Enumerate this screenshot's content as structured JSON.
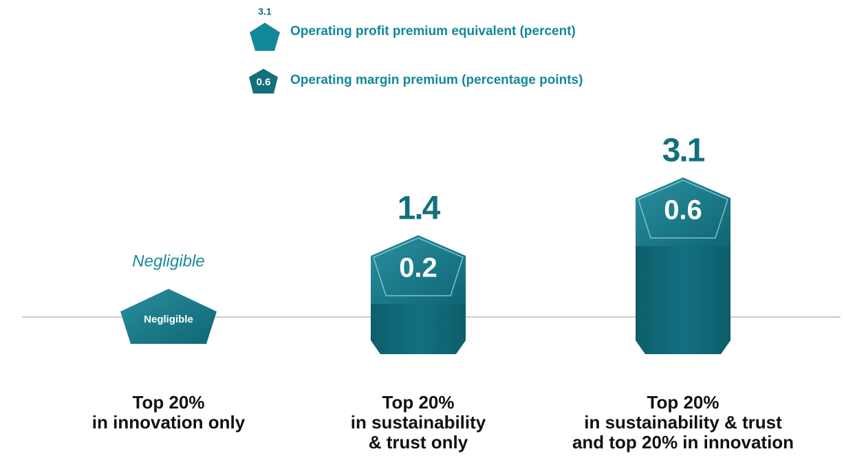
{
  "chart_data": {
    "type": "pentagon-column",
    "legend_samples": [
      "3.1",
      "0.6"
    ],
    "categories": [
      [
        "Top 20%",
        "in innovation only"
      ],
      [
        "Top 20%",
        "in sustainability",
        "& trust only"
      ],
      [
        "Top 20%",
        "in sustainability & trust",
        "and top 20% in innovation"
      ]
    ],
    "series": [
      {
        "name": "Operating profit premium equivalent (percent)",
        "color": "#136f7e",
        "values": [
          null,
          1.4,
          3.1
        ],
        "value_labels": [
          "Negligible",
          "1.4",
          "3.1"
        ]
      },
      {
        "name": "Operating margin premium (percentage points)",
        "color": "#1a7e8d",
        "values": [
          null,
          0.2,
          0.6
        ],
        "value_labels": [
          "Negligible",
          "0.2",
          "0.6"
        ]
      }
    ]
  }
}
